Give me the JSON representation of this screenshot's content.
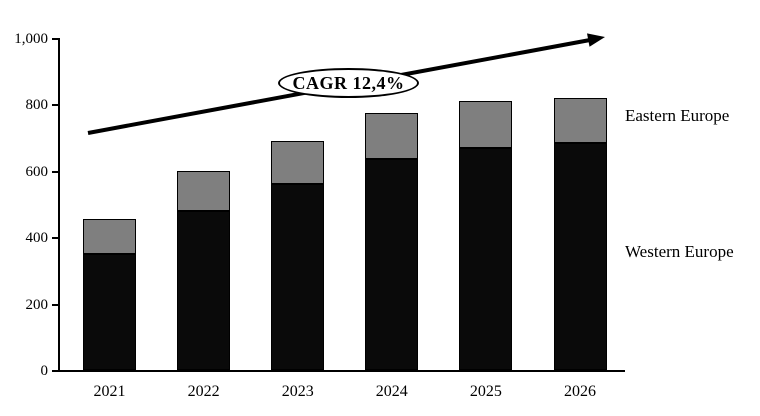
{
  "chart_data": {
    "type": "bar",
    "stacked": true,
    "title": "",
    "xlabel": "",
    "ylabel": "",
    "categories": [
      "2021",
      "2022",
      "2023",
      "2024",
      "2025",
      "2026"
    ],
    "series": [
      {
        "name": "Western Europe",
        "color": "#0a0a0a",
        "values": [
          350,
          480,
          560,
          635,
          670,
          685
        ]
      },
      {
        "name": "Eastern Europe",
        "color": "#7f7f7f",
        "values": [
          105,
          120,
          130,
          140,
          140,
          135
        ]
      }
    ],
    "totals": [
      455,
      600,
      690,
      775,
      810,
      820
    ],
    "ylim": [
      0,
      1000
    ],
    "yticks": [
      0,
      200,
      400,
      600,
      800,
      1000
    ],
    "ytick_labels": [
      "0",
      "200",
      "400",
      "600",
      "800",
      "1,000"
    ],
    "grid": false,
    "legend": {
      "position": "right",
      "entries": [
        "Eastern Europe",
        "Western Europe"
      ]
    },
    "annotation": {
      "label": "CAGR 12,4%",
      "type": "trend-arrow-with-ellipse"
    }
  }
}
